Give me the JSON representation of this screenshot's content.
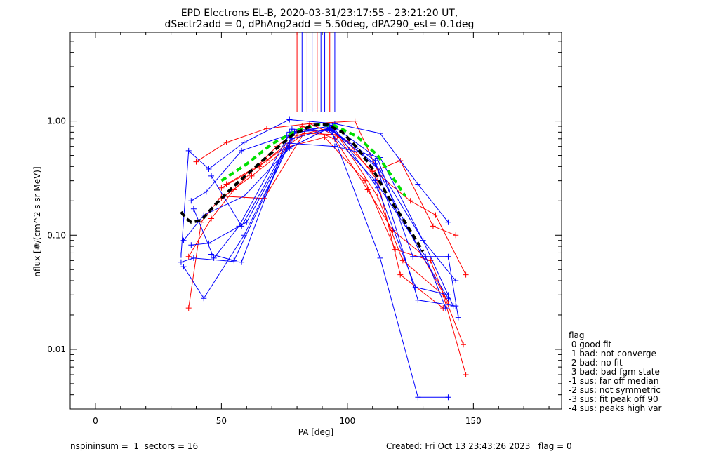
{
  "chart_data": {
    "type": "scatter",
    "title": "EPD Electrons EL-B, 2020-03-31/23:17:55 - 23:21:20 UT,",
    "subtitle": "dSectr2add = 0, dPhAng2add = 5.50deg, dPA290_est=    0.1deg",
    "xlabel": "PA [deg]",
    "ylabel": "nflux [#/(cm^2 s sr MeV)]",
    "xlim": [
      -10,
      185
    ],
    "ylim": [
      0.003,
      6.0
    ],
    "yscale": "log",
    "xticks": [
      0,
      50,
      100,
      150
    ],
    "xtick_labels": [
      "0",
      "50",
      "100",
      "150"
    ],
    "yticks": [
      0.01,
      0.1,
      1.0
    ],
    "ytick_labels": [
      "0.01",
      "0.10",
      "1.00"
    ],
    "grid": false,
    "legend_position": "bottom-right-outside",
    "colors": {
      "red": "#ff0000",
      "blue": "#0000ff",
      "green": "#00e000",
      "black": "#000000"
    },
    "vertical_lines": {
      "y_range": [
        1.2,
        6.0
      ],
      "lines": [
        {
          "x": 80,
          "color": "red"
        },
        {
          "x": 82,
          "color": "blue"
        },
        {
          "x": 84,
          "color": "red"
        },
        {
          "x": 86,
          "color": "blue"
        },
        {
          "x": 88,
          "color": "red"
        },
        {
          "x": 89.5,
          "color": "blue"
        },
        {
          "x": 91,
          "color": "blue"
        },
        {
          "x": 93,
          "color": "red"
        },
        {
          "x": 95,
          "color": "blue"
        }
      ]
    },
    "series": [
      {
        "color": "red",
        "points": [
          [
            37,
            0.023
          ],
          [
            42,
            0.13
          ],
          [
            50,
            0.22
          ],
          [
            67,
            0.21
          ],
          [
            85,
            0.95
          ],
          [
            100,
            0.67
          ],
          [
            112,
            0.3
          ],
          [
            121,
            0.045
          ],
          [
            138,
            0.023
          ]
        ]
      },
      {
        "color": "red",
        "points": [
          [
            37,
            0.065
          ],
          [
            46,
            0.14
          ],
          [
            55,
            0.25
          ],
          [
            72,
            0.6
          ],
          [
            82,
            0.9
          ],
          [
            95,
            0.7
          ],
          [
            108,
            0.25
          ],
          [
            118,
            0.11
          ],
          [
            129,
            0.07
          ],
          [
            140,
            0.026
          ]
        ]
      },
      {
        "color": "red",
        "points": [
          [
            40,
            0.44
          ],
          [
            52,
            0.65
          ],
          [
            68,
            0.86
          ],
          [
            85,
            0.95
          ],
          [
            103,
            1.0
          ],
          [
            113,
            0.33
          ],
          [
            125,
            0.2
          ],
          [
            135,
            0.15
          ],
          [
            147,
            0.045
          ]
        ]
      },
      {
        "color": "red",
        "points": [
          [
            50,
            0.21
          ],
          [
            62,
            0.33
          ],
          [
            77,
            0.6
          ],
          [
            91,
            0.72
          ],
          [
            107,
            0.3
          ],
          [
            119,
            0.075
          ],
          [
            133,
            0.06
          ],
          [
            146,
            0.011
          ]
        ]
      },
      {
        "color": "red",
        "points": [
          [
            50,
            0.26
          ],
          [
            65,
            0.4
          ],
          [
            80,
            0.75
          ],
          [
            93,
            0.87
          ],
          [
            110,
            0.36
          ],
          [
            121,
            0.45
          ],
          [
            134,
            0.12
          ],
          [
            143,
            0.1
          ]
        ]
      },
      {
        "color": "red",
        "points": [
          [
            52,
            0.28
          ],
          [
            68,
            0.45
          ],
          [
            83,
            0.78
          ],
          [
            96,
            0.76
          ],
          [
            112,
            0.22
          ],
          [
            122,
            0.06
          ],
          [
            138,
            0.03
          ],
          [
            147,
            0.006
          ]
        ]
      },
      {
        "color": "blue",
        "points": [
          [
            34,
            0.058
          ],
          [
            39,
            0.063
          ],
          [
            58,
            0.058
          ],
          [
            77,
            0.8
          ],
          [
            93,
            0.9
          ],
          [
            113,
            0.063
          ],
          [
            128,
            0.0038
          ],
          [
            140,
            0.0038
          ]
        ]
      },
      {
        "color": "blue",
        "points": [
          [
            34,
            0.067
          ],
          [
            37,
            0.55
          ],
          [
            45,
            0.38
          ],
          [
            59,
            0.65
          ],
          [
            77,
            1.03
          ],
          [
            95,
            0.95
          ],
          [
            113,
            0.78
          ],
          [
            128,
            0.28
          ],
          [
            140,
            0.13
          ]
        ]
      },
      {
        "color": "blue",
        "points": [
          [
            35,
            0.053
          ],
          [
            43,
            0.028
          ],
          [
            59,
            0.1
          ],
          [
            78,
            0.7
          ],
          [
            93,
            0.86
          ],
          [
            111,
            0.45
          ],
          [
            128,
            0.027
          ],
          [
            143,
            0.024
          ]
        ]
      },
      {
        "color": "blue",
        "points": [
          [
            38,
            0.2
          ],
          [
            44,
            0.24
          ],
          [
            58,
            0.55
          ],
          [
            76,
            0.75
          ],
          [
            94,
            0.92
          ],
          [
            112,
            0.47
          ],
          [
            126,
            0.065
          ],
          [
            140,
            0.065
          ],
          [
            144,
            0.019
          ]
        ]
      },
      {
        "color": "blue",
        "points": [
          [
            38,
            0.082
          ],
          [
            45,
            0.085
          ],
          [
            60,
            0.13
          ],
          [
            77,
            0.64
          ],
          [
            95,
            0.6
          ],
          [
            113,
            0.48
          ],
          [
            130,
            0.09
          ],
          [
            143,
            0.04
          ]
        ]
      },
      {
        "color": "blue",
        "points": [
          [
            39,
            0.17
          ],
          [
            47,
            0.063
          ],
          [
            57,
            0.12
          ],
          [
            78,
            0.85
          ],
          [
            94,
            0.82
          ],
          [
            111,
            0.42
          ],
          [
            129,
            0.07
          ],
          [
            140,
            0.028
          ]
        ]
      },
      {
        "color": "blue",
        "points": [
          [
            35,
            0.09
          ],
          [
            43,
            0.15
          ],
          [
            59,
            0.22
          ],
          [
            77,
            0.58
          ],
          [
            93,
            0.88
          ],
          [
            113,
            0.37
          ],
          [
            130,
            0.09
          ],
          [
            142,
            0.024
          ]
        ]
      },
      {
        "color": "blue",
        "points": [
          [
            46,
            0.068
          ],
          [
            55,
            0.06
          ],
          [
            76,
            0.57
          ],
          [
            92,
            0.85
          ],
          [
            111,
            0.3
          ],
          [
            131,
            0.065
          ],
          [
            139,
            0.023
          ]
        ]
      },
      {
        "color": "blue",
        "points": [
          [
            46,
            0.33
          ],
          [
            58,
            0.12
          ],
          [
            79,
            0.8
          ],
          [
            95,
            0.85
          ],
          [
            112,
            0.26
          ],
          [
            127,
            0.035
          ],
          [
            140,
            0.03
          ]
        ]
      }
    ],
    "fit_curves": [
      {
        "name": "",
        "color": "green",
        "dash": "dashed",
        "points": [
          [
            50,
            0.3
          ],
          [
            60,
            0.42
          ],
          [
            70,
            0.63
          ],
          [
            80,
            0.83
          ],
          [
            88,
            0.93
          ],
          [
            95,
            0.91
          ],
          [
            104,
            0.73
          ],
          [
            112,
            0.5
          ],
          [
            118,
            0.32
          ],
          [
            123,
            0.22
          ]
        ]
      },
      {
        "name": "",
        "color": "black",
        "dash": "dashed",
        "points": [
          [
            34,
            0.16
          ],
          [
            36,
            0.14
          ],
          [
            38,
            0.13
          ],
          [
            42,
            0.135
          ],
          [
            48,
            0.19
          ],
          [
            55,
            0.27
          ],
          [
            62,
            0.37
          ],
          [
            70,
            0.53
          ],
          [
            78,
            0.75
          ],
          [
            86,
            0.92
          ],
          [
            92,
            0.93
          ],
          [
            98,
            0.8
          ],
          [
            104,
            0.58
          ],
          [
            110,
            0.38
          ],
          [
            116,
            0.22
          ],
          [
            122,
            0.14
          ],
          [
            128,
            0.085
          ],
          [
            130,
            0.072
          ]
        ]
      }
    ]
  },
  "legend": {
    "title": "flag",
    "items": [
      " 0 good fit",
      " 1 bad: not converge",
      " 2 bad: no fit",
      " 3 bad: bad fgm state",
      "-1 sus: far off median",
      "-2 sus: not symmetric",
      "-3 sus: fit peak off 90",
      "-4 sus: peaks high var"
    ]
  },
  "footer": {
    "left": "nspininsum =  1  sectors = 16",
    "right": "Created: Fri Oct 13 23:43:26 2023   flag = 0"
  }
}
